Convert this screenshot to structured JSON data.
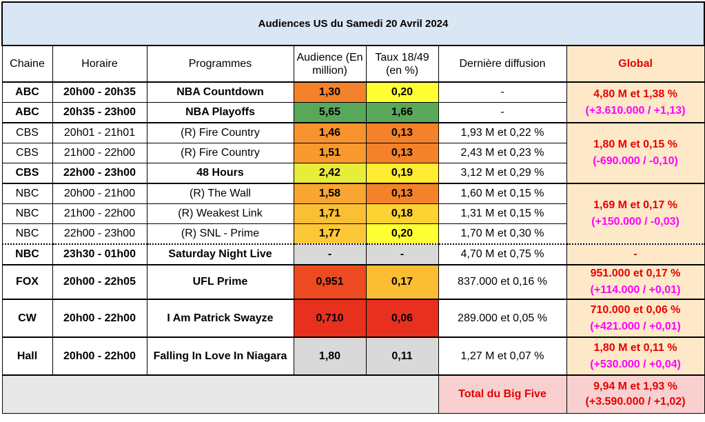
{
  "title": "Audiences US du Samedi 20 Avril 2024",
  "headers": {
    "chaine": "Chaine",
    "horaire": "Horaire",
    "programmes": "Programmes",
    "audience": "Audience (En million)",
    "taux": "Taux 18/49 (en %)",
    "derniere": "Dernière diffusion",
    "global": "Global"
  },
  "rows": [
    {
      "chaine": "ABC",
      "horaire": "20h00 - 20h35",
      "programme": "NBA Countdown",
      "audience": "1,30",
      "taux": "0,20",
      "derniere": "-",
      "audience_color": "#f4822a",
      "taux_color": "#ffff33"
    },
    {
      "chaine": "ABC",
      "horaire": "20h35 - 23h00",
      "programme": "NBA Playoffs",
      "audience": "5,65",
      "taux": "1,66",
      "derniere": "-",
      "audience_color": "#59a85a",
      "taux_color": "#59a85a"
    },
    {
      "chaine": "CBS",
      "horaire": "20h01 - 21h01",
      "programme": "(R) Fire Country",
      "audience": "1,46",
      "taux": "0,13",
      "derniere": "1,93 M et 0,22 %",
      "audience_color": "#f7932e",
      "taux_color": "#f4822a"
    },
    {
      "chaine": "CBS",
      "horaire": "21h00 - 22h00",
      "programme": "(R) Fire Country",
      "audience": "1,51",
      "taux": "0,13",
      "derniere": "2,43 M et 0,23 %",
      "audience_color": "#f89a2f",
      "taux_color": "#f4822a"
    },
    {
      "chaine": "CBS",
      "horaire": "22h00 - 23h00",
      "programme": "48 Hours",
      "audience": "2,42",
      "taux": "0,19",
      "derniere": "3,12 M et 0,29 %",
      "audience_color": "#e8ec3a",
      "taux_color": "#ffec33"
    },
    {
      "chaine": "NBC",
      "horaire": "20h00 - 21h00",
      "programme": "(R) The Wall",
      "audience": "1,58",
      "taux": "0,13",
      "derniere": "1,60 M et 0,15 %",
      "audience_color": "#f9a532",
      "taux_color": "#f4822a"
    },
    {
      "chaine": "NBC",
      "horaire": "21h00 - 22h00",
      "programme": "(R) Weakest Link",
      "audience": "1,71",
      "taux": "0,18",
      "derniere": "1,31 M et 0,15 %",
      "audience_color": "#fbbf36",
      "taux_color": "#ffd233"
    },
    {
      "chaine": "NBC",
      "horaire": "22h00 - 23h00",
      "programme": "(R) SNL - Prime",
      "audience": "1,77",
      "taux": "0,20",
      "derniere": "1,70 M et 0,30 %",
      "audience_color": "#fcc838",
      "taux_color": "#ffff33"
    },
    {
      "chaine": "NBC",
      "horaire": "23h30 - 01h00",
      "programme": "Saturday Night Live",
      "audience": "-",
      "taux": "-",
      "derniere": "4,70 M et 0,75 %",
      "audience_color": "#d9d9d9",
      "taux_color": "#d9d9d9"
    },
    {
      "chaine": "FOX",
      "horaire": "20h00 - 22h05",
      "programme": "UFL Prime",
      "audience": "0,951",
      "taux": "0,17",
      "derniere": "837.000 et 0,16 %",
      "audience_color": "#ee4a22",
      "taux_color": "#fbbd34"
    },
    {
      "chaine": "CW",
      "horaire": "20h00 - 22h00",
      "programme": "I Am Patrick Swayze",
      "audience": "0,710",
      "taux": "0,06",
      "derniere": "289.000 et 0,05 %",
      "audience_color": "#e8301e",
      "taux_color": "#e8301e"
    },
    {
      "chaine": "Hall",
      "horaire": "20h00 - 22h00",
      "programme": "Falling In Love In Niagara",
      "audience": "1,80",
      "taux": "0,11",
      "derniere": "1,27 M et 0,07 %",
      "audience_color": "#d9d9d9",
      "taux_color": "#d9d9d9"
    }
  ],
  "globals": {
    "abc": {
      "main": "4,80 M et 1,38 %",
      "sub": "(+3.610.000 / +1,13)"
    },
    "cbs": {
      "main": "1,80 M et 0,15 %",
      "sub": "(-690.000 / -0,10)"
    },
    "nbc": {
      "main": "1,69 M et 0,17 %",
      "sub": "(+150.000 / -0,03)"
    },
    "nbc_snl": "-",
    "fox": {
      "main": "951.000 et 0,17 %",
      "sub": "(+114.000 / +0,01)"
    },
    "cw": {
      "main": "710.000 et 0,06 %",
      "sub": "(+421.000 / +0,01)"
    },
    "hall": {
      "main": "1,80 M et 0,11 %",
      "sub": "(+530.000 / +0,04)"
    }
  },
  "total": {
    "label": "Total du Big Five",
    "main": "9,94 M et 1,93 %",
    "sub": "(+3.590.000 / +1,02)"
  }
}
